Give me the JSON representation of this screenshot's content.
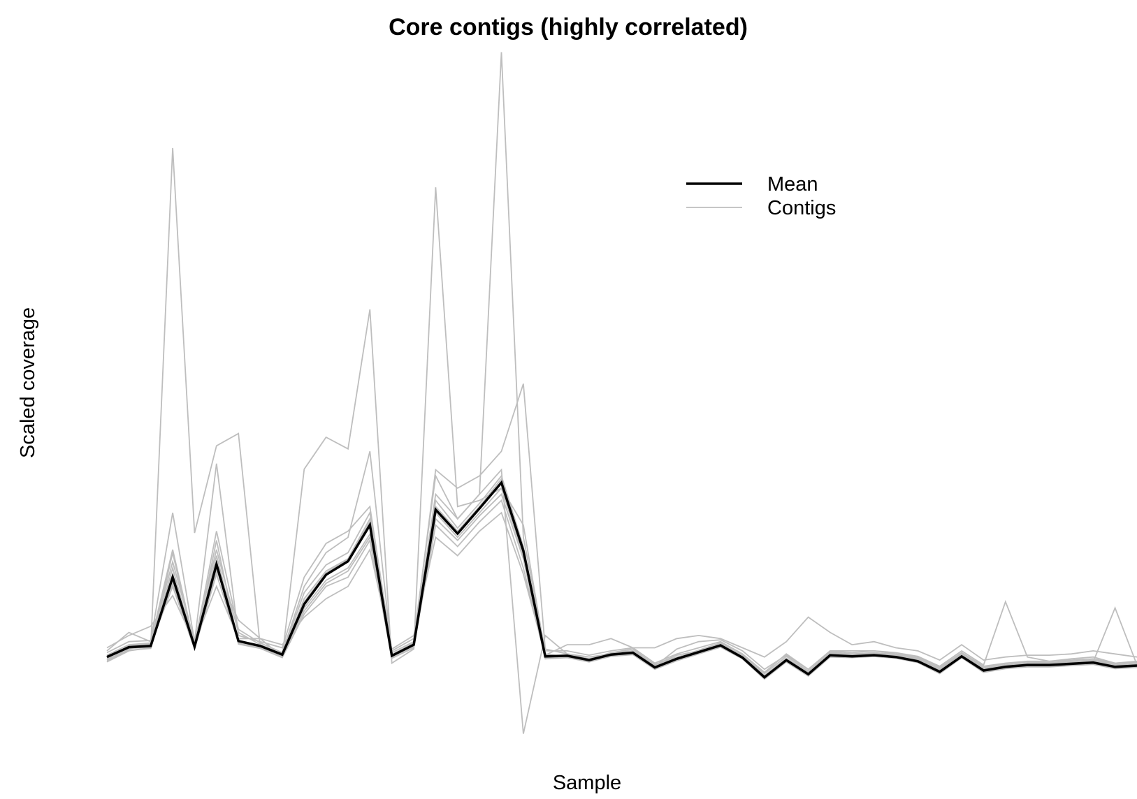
{
  "chart_data": {
    "type": "line",
    "title": "Core contigs (highly correlated)",
    "xlabel": "Sample",
    "ylabel": "Scaled coverage",
    "axes_shown": false,
    "grid": false,
    "legend_position": "top-right",
    "legend": [
      {
        "label": "Mean",
        "color": "#000000"
      },
      {
        "label": "Contigs",
        "color": "#bebebe"
      }
    ],
    "x": [
      1,
      2,
      3,
      4,
      5,
      6,
      7,
      8,
      9,
      10,
      11,
      12,
      13,
      14,
      15,
      16,
      17,
      18,
      19,
      20,
      21,
      22,
      23,
      24,
      25,
      26,
      27,
      28,
      29,
      30,
      31,
      32,
      33,
      34,
      35,
      36,
      37,
      38,
      39,
      40,
      41,
      42,
      43,
      44,
      45,
      46,
      47,
      48
    ],
    "ylim": [
      -10,
      100
    ],
    "series": [
      {
        "name": "Mean",
        "color": "#000000",
        "values": [
          0.5,
          2.1,
          2.3,
          13.5,
          2.2,
          15.6,
          3.1,
          2.3,
          0.9,
          9.1,
          13.9,
          16.1,
          22.0,
          0.7,
          2.5,
          24.5,
          20.6,
          24.7,
          28.9,
          17.8,
          0.6,
          0.7,
          0.0,
          0.9,
          1.2,
          -1.2,
          0.2,
          1.3,
          2.4,
          0.4,
          -2.8,
          0.0,
          -2.3,
          0.8,
          0.6,
          0.8,
          0.5,
          -0.2,
          -1.9,
          0.6,
          -1.7,
          -1.1,
          -0.8,
          -0.8,
          -0.6,
          -0.4,
          -1.1,
          -0.9
        ]
      },
      {
        "color": "#bebebe",
        "values": [
          -0.3,
          1.5,
          2.0,
          83.4,
          20.7,
          34.9,
          36.9,
          2.1,
          0.5,
          31.1,
          36.3,
          34.4,
          57.1,
          -0.5,
          1.8,
          77.0,
          25.0,
          26.0,
          28.0,
          22.0,
          1.0,
          0.5,
          -0.3,
          1.2,
          1.5,
          -0.9,
          0.4,
          1.6,
          2.8,
          0.7,
          -2.5,
          0.3,
          -2.0,
          1.1,
          0.9,
          1.1,
          0.8,
          0.1,
          -1.6,
          0.9,
          -1.4,
          -0.8,
          -0.5,
          -0.5,
          -0.3,
          -0.1,
          -0.8,
          -0.6
        ]
      },
      {
        "color": "#bebebe",
        "values": [
          1.2,
          3.0,
          3.2,
          24.0,
          3.0,
          32.0,
          4.0,
          3.0,
          2.0,
          13.5,
          19.0,
          21.0,
          25.0,
          1.5,
          3.5,
          30.0,
          23.0,
          27.0,
          99.0,
          20.0,
          1.5,
          1.5,
          0.8,
          1.5,
          2.0,
          -0.5,
          1.0,
          2.0,
          3.0,
          1.0,
          -2.0,
          1.0,
          -1.5,
          1.5,
          1.2,
          1.5,
          1.0,
          0.5,
          -1.2,
          1.2,
          -1.0,
          -0.5,
          -0.2,
          -0.2,
          0.0,
          0.2,
          -0.5,
          -0.3
        ]
      },
      {
        "color": "#bebebe",
        "values": [
          1.5,
          4.5,
          3.0,
          18.0,
          2.5,
          21.0,
          5.0,
          2.8,
          1.2,
          12.0,
          17.5,
          20.0,
          34.0,
          1.2,
          3.0,
          31.0,
          28.0,
          30.0,
          34.0,
          45.0,
          1.8,
          1.0,
          0.2,
          1.2,
          1.8,
          -0.8,
          0.8,
          1.5,
          2.6,
          0.8,
          -2.2,
          0.6,
          -1.8,
          1.3,
          1.0,
          1.2,
          0.9,
          0.3,
          -1.4,
          1.0,
          -1.2,
          -0.6,
          -0.3,
          -0.4,
          -0.2,
          0.0,
          -0.6,
          -0.4
        ]
      },
      {
        "color": "#bebebe",
        "values": [
          0.8,
          2.5,
          2.8,
          16.0,
          3.0,
          18.0,
          4.5,
          2.5,
          1.0,
          11.0,
          15.5,
          17.5,
          24.0,
          0.9,
          2.8,
          27.0,
          23.0,
          27.0,
          31.0,
          -12.0,
          4.0,
          1.0,
          0.5,
          1.0,
          1.5,
          -0.7,
          0.5,
          1.4,
          2.5,
          0.6,
          -2.6,
          0.2,
          -2.1,
          1.0,
          0.8,
          0.9,
          0.6,
          0.0,
          -1.7,
          0.8,
          -1.5,
          -0.9,
          -0.6,
          -0.6,
          -0.4,
          -0.2,
          -0.9,
          -0.7
        ]
      },
      {
        "color": "#bebebe",
        "values": [
          -0.2,
          1.8,
          2.5,
          12.0,
          1.8,
          14.0,
          2.8,
          2.0,
          0.8,
          8.0,
          12.5,
          14.5,
          20.0,
          0.5,
          2.2,
          22.0,
          18.5,
          22.5,
          26.0,
          15.0,
          0.4,
          0.6,
          -0.1,
          0.8,
          1.0,
          -1.4,
          0.0,
          1.1,
          2.2,
          0.3,
          -3.0,
          -0.2,
          -2.5,
          0.6,
          0.5,
          0.7,
          0.4,
          -0.3,
          -2.1,
          0.5,
          -1.9,
          -1.3,
          -1.0,
          -1.0,
          -0.8,
          -0.6,
          -1.3,
          -1.1
        ]
      },
      {
        "color": "#bebebe",
        "values": [
          2.0,
          4.0,
          5.5,
          10.5,
          2.8,
          12.0,
          3.5,
          3.5,
          2.5,
          7.0,
          10.0,
          12.0,
          18.0,
          1.8,
          4.0,
          20.0,
          17.0,
          21.0,
          24.0,
          14.0,
          0.8,
          2.5,
          2.5,
          3.5,
          2.0,
          2.0,
          3.5,
          4.0,
          3.5,
          2.0,
          0.5,
          3.0,
          7.0,
          4.5,
          2.5,
          3.0,
          2.0,
          1.5,
          0.0,
          2.5,
          0.0,
          0.5,
          0.8,
          0.8,
          1.0,
          1.5,
          1.0,
          0.5
        ]
      },
      {
        "color": "#bebebe",
        "values": [
          0.0,
          2.0,
          2.2,
          15.0,
          2.0,
          17.0,
          3.0,
          2.2,
          0.7,
          10.0,
          14.5,
          16.5,
          23.0,
          0.6,
          2.4,
          26.0,
          21.5,
          25.5,
          30.0,
          18.5,
          0.5,
          0.6,
          -0.1,
          0.8,
          1.1,
          -1.0,
          1.8,
          3.0,
          3.3,
          1.5,
          -1.5,
          0.8,
          -1.5,
          1.5,
          1.5,
          1.5,
          1.2,
          0.6,
          -1.0,
          1.5,
          -0.8,
          9.5,
          0.5,
          -0.2,
          0.2,
          0.5,
          -0.5,
          -0.2
        ]
      },
      {
        "color": "#bebebe",
        "values": [
          0.3,
          2.3,
          2.6,
          12.5,
          2.4,
          14.5,
          6.5,
          3.5,
          0.5,
          8.5,
          13.0,
          15.0,
          20.5,
          0.8,
          2.6,
          24.0,
          20.0,
          24.0,
          28.0,
          17.0,
          0.7,
          0.8,
          0.1,
          1.0,
          1.3,
          -1.1,
          0.3,
          1.4,
          2.5,
          0.5,
          -2.7,
          0.1,
          -2.2,
          0.9,
          0.7,
          0.9,
          0.6,
          -0.1,
          -1.8,
          0.7,
          -1.6,
          -1.0,
          -0.7,
          -0.7,
          -0.5,
          -0.3,
          8.5,
          -0.8
        ]
      },
      {
        "color": "#bebebe",
        "values": [
          0.7,
          1.9,
          2.1,
          14.0,
          2.3,
          16.0,
          3.2,
          2.4,
          1.0,
          9.5,
          14.2,
          16.4,
          22.5,
          0.7,
          2.5,
          25.0,
          21.0,
          25.0,
          29.5,
          18.2,
          0.7,
          0.8,
          0.1,
          1.0,
          1.3,
          -1.1,
          0.3,
          1.4,
          2.5,
          0.5,
          -2.7,
          0.1,
          -2.2,
          0.9,
          0.7,
          0.9,
          0.6,
          -0.1,
          -1.8,
          0.7,
          -1.6,
          -1.0,
          -0.7,
          -0.7,
          -0.5,
          -0.3,
          -1.0,
          -0.8
        ]
      },
      {
        "color": "#bebebe",
        "values": [
          0.2,
          1.6,
          1.9,
          17.5,
          1.9,
          19.5,
          2.6,
          1.9,
          0.4,
          7.5,
          12.0,
          13.5,
          19.5,
          0.3,
          2.0,
          23.0,
          19.5,
          23.5,
          27.0,
          16.5,
          0.2,
          0.4,
          -0.3,
          0.6,
          0.9,
          -1.5,
          -0.1,
          1.0,
          2.1,
          0.2,
          -3.1,
          -0.3,
          -2.6,
          0.5,
          0.4,
          0.6,
          0.3,
          -0.4,
          -2.2,
          0.4,
          -2.0,
          -1.4,
          -1.1,
          -1.1,
          -0.9,
          -0.7,
          -1.4,
          -1.2
        ]
      }
    ]
  }
}
